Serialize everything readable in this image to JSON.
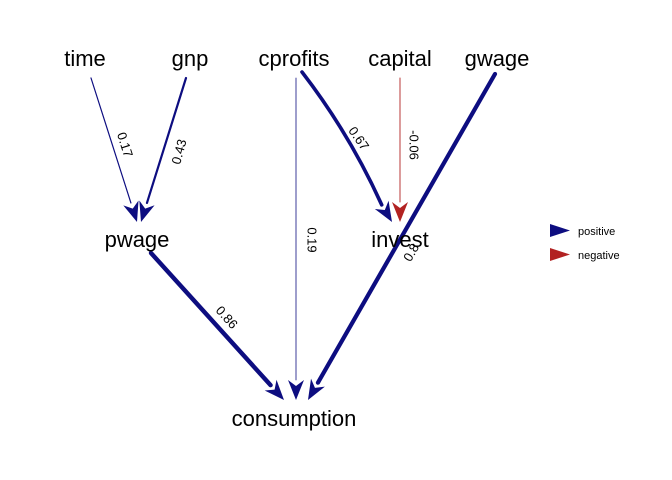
{
  "colors": {
    "positive": "#0d0d80",
    "negative": "#b22222",
    "background": "#ffffff",
    "text": "#000000"
  },
  "nodes": [
    {
      "id": "time",
      "label": "time"
    },
    {
      "id": "gnp",
      "label": "gnp"
    },
    {
      "id": "cprofits",
      "label": "cprofits"
    },
    {
      "id": "capital",
      "label": "capital"
    },
    {
      "id": "gwage",
      "label": "gwage"
    },
    {
      "id": "pwage",
      "label": "pwage"
    },
    {
      "id": "invest",
      "label": "invest"
    },
    {
      "id": "consumption",
      "label": "consumption"
    }
  ],
  "edges": [
    {
      "from": "time",
      "to": "pwage",
      "label": "0.17",
      "sign": "positive"
    },
    {
      "from": "gnp",
      "to": "pwage",
      "label": "0.43",
      "sign": "positive"
    },
    {
      "from": "cprofits",
      "to": "invest",
      "label": "0.67",
      "sign": "positive"
    },
    {
      "from": "capital",
      "to": "invest",
      "label": "-0.06",
      "sign": "negative"
    },
    {
      "from": "cprofits",
      "to": "consumption",
      "label": "0.19",
      "sign": "positive"
    },
    {
      "from": "pwage",
      "to": "consumption",
      "label": "0.86",
      "sign": "positive"
    },
    {
      "from": "gwage",
      "to": "consumption",
      "label": "0.8",
      "sign": "positive"
    }
  ],
  "legend": {
    "items": [
      {
        "label": "positive",
        "sign": "positive"
      },
      {
        "label": "negative",
        "sign": "negative"
      }
    ]
  }
}
